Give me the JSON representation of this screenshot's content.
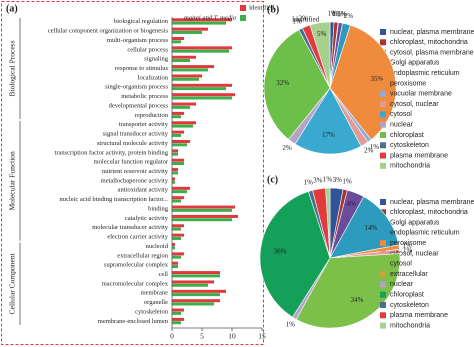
{
  "chart_data": [
    {
      "type": "bar",
      "label": "(a)",
      "xlim": [
        0,
        15
      ],
      "xticks": [
        0,
        5,
        10,
        15
      ],
      "series": [
        {
          "name": "Identified",
          "color": "#e0383b"
        },
        {
          "name": "mairei and T. media",
          "color": "#3cae4a"
        }
      ],
      "groups": [
        {
          "name": "Biological Process",
          "categories": [
            "biological regulation",
            "cellular component organization or biogenesis",
            "multi-organism process",
            "cellular process",
            "signaling",
            "response to stimulus",
            "localization",
            "single-organism process",
            "metabolic process",
            "developmental process",
            "reproduction"
          ],
          "series": [
            {
              "values": [
                10,
                6,
                2,
                10,
                4,
                7,
                5,
                10,
                10.5,
                4,
                2
              ]
            },
            {
              "values": [
                9,
                5,
                1.5,
                9.5,
                3,
                6,
                4.5,
                9,
                10,
                3,
                1.5
              ]
            }
          ]
        },
        {
          "name": "Molecular Function",
          "categories": [
            "transporter activity",
            "signal transducer activity",
            "structural molecule activity",
            "transcription factor activity, protein binding",
            "molecular function regulator",
            "nutrient reservoir activity",
            "metallochaperone activity",
            "antioxidant activity",
            "nucleic acid binding transcription factor...",
            "binding",
            "catalytic activity",
            "molecular transducer activity",
            "electron carrier activity"
          ],
          "series": [
            {
              "values": [
                4,
                2,
                3,
                1,
                2,
                1,
                0.5,
                3,
                2,
                10.5,
                11,
                2,
                2
              ]
            },
            {
              "values": [
                3.5,
                1.5,
                2.5,
                1,
                2,
                1,
                0.5,
                2.5,
                1.5,
                10,
                10,
                1.5,
                1.5
              ]
            }
          ]
        },
        {
          "name": "Cellular Component",
          "categories": [
            "nucleoid",
            "extracellular region",
            "supramolecular complex",
            "cell",
            "macromolecular complex",
            "membrane",
            "organelle",
            "cytoskeleton",
            "membrane-enclosed lumen"
          ],
          "series": [
            {
              "values": [
                0.5,
                2,
                1,
                8,
                7,
                9,
                8,
                2,
                2
              ]
            },
            {
              "values": [
                0.5,
                1.5,
                1,
                8,
                6,
                8,
                7,
                1.5,
                1.5
              ]
            }
          ]
        }
      ]
    },
    {
      "type": "pie",
      "label": "(b)",
      "annotation": "Identified",
      "categories": [
        "nuclear, plasma membrane",
        "chloroplast, mitochondria",
        "cytosol, plasma membrane",
        "Golgi apparatus",
        "endoplasmic reticulum",
        "peroxisome",
        "vacuolar membrane",
        "cytosol, nuclear",
        "cytosol",
        "nuclear",
        "chloroplast",
        "cytoskeleton",
        "plasma membrane",
        "mitochondria"
      ],
      "values": [
        1,
        1,
        0.1,
        1,
        2,
        35,
        1,
        2,
        17,
        2,
        32,
        1,
        2,
        5
      ],
      "value_labels": [
        "1%",
        "1%",
        "0.1%",
        "1%",
        "2%",
        "35%",
        "1%",
        "2%",
        "17%",
        "2%",
        "32%",
        "1%",
        "2%",
        "5%"
      ],
      "colors": [
        "#2f5597",
        "#a9342f",
        "#8aa63c",
        "#6b4c9a",
        "#2c9bbd",
        "#f08a3c",
        "#8eaadb",
        "#e39a97",
        "#3aa9d0",
        "#b4a2c8",
        "#6cc04a",
        "#4b6f8f",
        "#e43a3e",
        "#a8d08d"
      ]
    },
    {
      "type": "pie",
      "label": "(c)",
      "categories": [
        "nuclear, plasma membrane",
        "chloroplast, mitochondria",
        "Golgi apparatus",
        "endoplasmic reticulum",
        "peroxisome",
        "cytosol, nuclear",
        "cytosol",
        "extracellular",
        "nuclear",
        "chloroplast",
        "cytoskeleton",
        "plasma membrane",
        "mitochondria"
      ],
      "values": [
        3,
        1,
        4,
        14,
        1,
        1,
        34,
        0,
        1,
        36,
        1,
        3,
        1
      ],
      "value_labels": [
        "3%",
        "1%",
        "4%",
        "14%",
        "1%",
        "1%",
        "34%",
        "0%",
        "1%",
        "36%",
        "1%",
        "3%",
        "1%"
      ],
      "colors": [
        "#2f5597",
        "#a9342f",
        "#6b4c9a",
        "#2c9bbd",
        "#f08a3c",
        "#e39a97",
        "#7cc04a",
        "#c9a23c",
        "#b4a2c8",
        "#15a05a",
        "#4b6f8f",
        "#e43a3e",
        "#a8d08d"
      ]
    }
  ]
}
